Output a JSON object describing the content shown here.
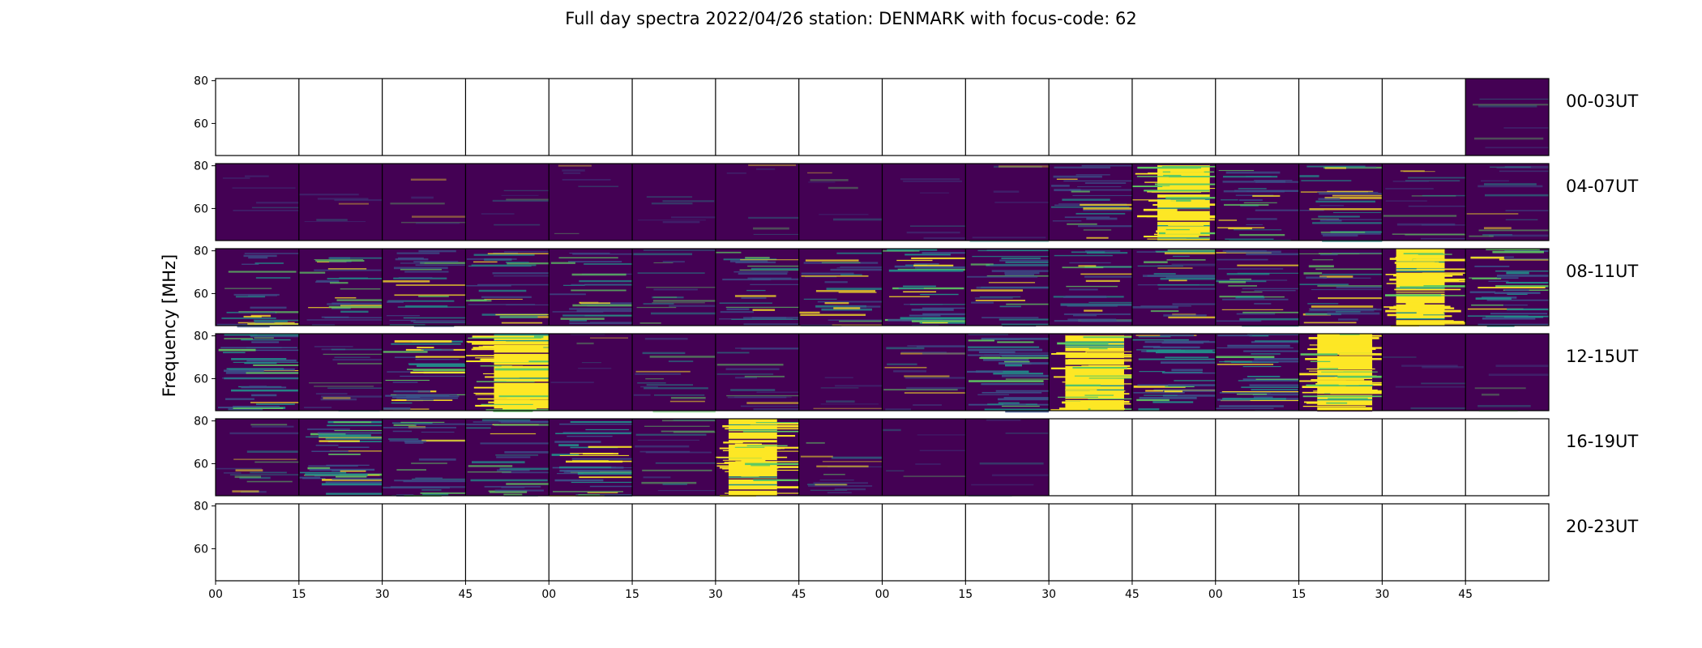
{
  "chart_data": {
    "type": "heatmap",
    "title": "Full day spectra 2022/04/26 station: DENMARK with focus-code: 62",
    "ylabel": "Frequency [MHz]",
    "ylim": [
      45,
      81
    ],
    "ytick_labels": [
      "80",
      "60"
    ],
    "xtick_labels": [
      "00",
      "15",
      "30",
      "45",
      "00",
      "15",
      "30",
      "45",
      "00",
      "15",
      "30",
      "45",
      "00",
      "15",
      "30",
      "45"
    ],
    "colormap": [
      "#440154",
      "#3b528b",
      "#21918c",
      "#5ec962",
      "#fde725"
    ],
    "grid": false,
    "rows": [
      {
        "label": "00-03UT",
        "panels": [
          "empty",
          "empty",
          "empty",
          "empty",
          "empty",
          "empty",
          "empty",
          "empty",
          "empty",
          "empty",
          "empty",
          "empty",
          "empty",
          "empty",
          "empty",
          "quiet"
        ]
      },
      {
        "label": "04-07UT",
        "panels": [
          "quiet",
          "quiet",
          "quiet",
          "quiet",
          "quiet",
          "quiet",
          "quiet",
          "quiet",
          "quiet",
          "quiet",
          "active",
          "saturated",
          "active",
          "active",
          "moderate",
          "moderate"
        ]
      },
      {
        "label": "08-11UT",
        "panels": [
          "active",
          "active",
          "active",
          "active",
          "active",
          "moderate",
          "active",
          "active",
          "bright",
          "active",
          "active",
          "active",
          "active",
          "active",
          "saturated",
          "bright"
        ]
      },
      {
        "label": "12-15UT",
        "panels": [
          "bright",
          "moderate",
          "bright",
          "saturated",
          "quiet",
          "moderate",
          "moderate",
          "quiet",
          "moderate",
          "bright",
          "saturated",
          "bright",
          "bright",
          "saturated",
          "quiet",
          "quiet"
        ]
      },
      {
        "label": "16-19UT",
        "panels": [
          "moderate",
          "bright",
          "active",
          "active",
          "bright",
          "moderate",
          "saturated",
          "moderate",
          "quiet",
          "quiet",
          "empty",
          "empty",
          "empty",
          "empty",
          "empty",
          "empty"
        ]
      },
      {
        "label": "20-23UT",
        "panels": [
          "empty",
          "empty",
          "empty",
          "empty",
          "empty",
          "empty",
          "empty",
          "empty",
          "empty",
          "empty",
          "empty",
          "empty",
          "empty",
          "empty",
          "empty",
          "empty"
        ]
      }
    ]
  }
}
